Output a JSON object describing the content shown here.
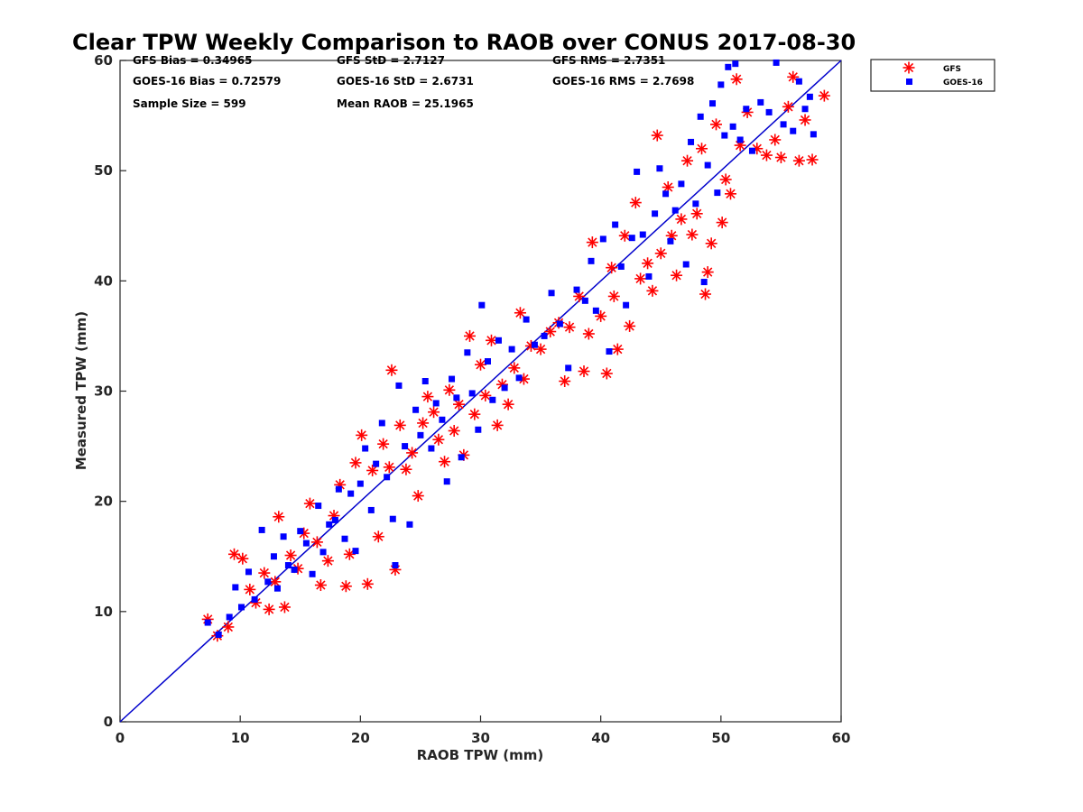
{
  "chart_data": {
    "type": "scatter",
    "title": "Clear TPW Weekly Comparison to RAOB over CONUS 2017-08-30",
    "xlabel": "RAOB TPW (mm)",
    "ylabel": "Measured TPW (mm)",
    "xlim": [
      0,
      60
    ],
    "ylim": [
      0,
      60
    ],
    "xticks": [
      "0",
      "10",
      "20",
      "30",
      "40",
      "50",
      "60"
    ],
    "yticks": [
      "0",
      "10",
      "20",
      "30",
      "40",
      "50",
      "60"
    ],
    "grid": false,
    "legend_position": "top-right outside plot",
    "stats": [
      "GFS Bias = 0.34965",
      "GFS StD = 2.7127",
      "GFS RMS = 2.7351",
      "GOES-16 Bias = 0.72579",
      "GOES-16 StD = 2.6731",
      "GOES-16 RMS = 2.7698",
      "Sample Size = 599",
      "Mean RAOB = 25.1965"
    ],
    "reference_line": {
      "slope": 1,
      "intercept": 0,
      "color": "#0000cc"
    },
    "series": [
      {
        "name": "GFS",
        "marker": "asterisk",
        "color": "#ff0000",
        "points": [
          [
            7.3,
            9.3
          ],
          [
            8.1,
            7.8
          ],
          [
            9.0,
            8.6
          ],
          [
            9.5,
            15.2
          ],
          [
            10.2,
            14.8
          ],
          [
            10.8,
            12.0
          ],
          [
            11.3,
            10.8
          ],
          [
            12.0,
            13.5
          ],
          [
            12.4,
            10.2
          ],
          [
            12.9,
            12.7
          ],
          [
            13.2,
            18.6
          ],
          [
            13.7,
            10.4
          ],
          [
            14.2,
            15.1
          ],
          [
            14.8,
            13.9
          ],
          [
            15.3,
            17.1
          ],
          [
            15.8,
            19.8
          ],
          [
            16.4,
            16.3
          ],
          [
            16.7,
            12.4
          ],
          [
            17.3,
            14.6
          ],
          [
            17.8,
            18.7
          ],
          [
            18.3,
            21.5
          ],
          [
            18.8,
            12.3
          ],
          [
            19.1,
            15.2
          ],
          [
            19.6,
            23.5
          ],
          [
            20.1,
            26.0
          ],
          [
            20.6,
            12.5
          ],
          [
            21.0,
            22.8
          ],
          [
            21.5,
            16.8
          ],
          [
            21.9,
            25.2
          ],
          [
            22.4,
            23.1
          ],
          [
            22.6,
            31.9
          ],
          [
            22.9,
            13.8
          ],
          [
            23.3,
            26.9
          ],
          [
            23.8,
            22.9
          ],
          [
            24.3,
            24.4
          ],
          [
            24.8,
            20.5
          ],
          [
            25.2,
            27.1
          ],
          [
            25.6,
            29.5
          ],
          [
            26.1,
            28.1
          ],
          [
            26.5,
            25.6
          ],
          [
            27.0,
            23.6
          ],
          [
            27.4,
            30.1
          ],
          [
            27.8,
            26.4
          ],
          [
            28.2,
            28.8
          ],
          [
            28.6,
            24.2
          ],
          [
            29.1,
            35.0
          ],
          [
            29.5,
            27.9
          ],
          [
            30.0,
            32.4
          ],
          [
            30.4,
            29.6
          ],
          [
            30.9,
            34.6
          ],
          [
            31.4,
            26.9
          ],
          [
            31.8,
            30.6
          ],
          [
            32.3,
            28.8
          ],
          [
            32.8,
            32.1
          ],
          [
            33.3,
            37.1
          ],
          [
            33.6,
            31.1
          ],
          [
            34.2,
            34.1
          ],
          [
            35.0,
            33.8
          ],
          [
            35.8,
            35.4
          ],
          [
            36.5,
            36.2
          ],
          [
            37.0,
            30.9
          ],
          [
            37.4,
            35.8
          ],
          [
            38.2,
            38.6
          ],
          [
            38.6,
            31.8
          ],
          [
            39.0,
            35.2
          ],
          [
            39.3,
            43.5
          ],
          [
            40.0,
            36.8
          ],
          [
            40.5,
            31.6
          ],
          [
            40.9,
            41.2
          ],
          [
            41.1,
            38.6
          ],
          [
            41.4,
            33.8
          ],
          [
            42.0,
            44.1
          ],
          [
            42.4,
            35.9
          ],
          [
            42.9,
            47.1
          ],
          [
            43.3,
            40.2
          ],
          [
            43.9,
            41.6
          ],
          [
            44.3,
            39.1
          ],
          [
            44.7,
            53.2
          ],
          [
            45.0,
            42.5
          ],
          [
            45.6,
            48.5
          ],
          [
            45.9,
            44.1
          ],
          [
            46.3,
            40.5
          ],
          [
            46.7,
            45.6
          ],
          [
            47.2,
            50.9
          ],
          [
            47.6,
            44.2
          ],
          [
            48.0,
            46.1
          ],
          [
            48.4,
            52.0
          ],
          [
            48.7,
            38.8
          ],
          [
            48.9,
            40.8
          ],
          [
            49.2,
            43.4
          ],
          [
            49.6,
            54.2
          ],
          [
            50.1,
            45.3
          ],
          [
            50.4,
            49.2
          ],
          [
            50.8,
            47.9
          ],
          [
            51.3,
            58.3
          ],
          [
            51.6,
            52.3
          ],
          [
            52.2,
            55.3
          ],
          [
            53.0,
            52.0
          ],
          [
            53.8,
            51.4
          ],
          [
            54.5,
            52.8
          ],
          [
            55.0,
            51.2
          ],
          [
            55.6,
            55.8
          ],
          [
            56.0,
            58.5
          ],
          [
            56.5,
            50.9
          ],
          [
            57.0,
            54.6
          ],
          [
            57.6,
            51.0
          ],
          [
            58.6,
            56.8
          ]
        ]
      },
      {
        "name": "GOES-16",
        "marker": "square",
        "color": "#0000ff",
        "points": [
          [
            7.3,
            9.0
          ],
          [
            8.2,
            7.9
          ],
          [
            9.1,
            9.5
          ],
          [
            9.6,
            12.2
          ],
          [
            10.1,
            10.4
          ],
          [
            10.7,
            13.6
          ],
          [
            11.2,
            11.1
          ],
          [
            11.8,
            17.4
          ],
          [
            12.3,
            12.7
          ],
          [
            12.8,
            15.0
          ],
          [
            13.1,
            12.1
          ],
          [
            13.6,
            16.8
          ],
          [
            14.0,
            14.2
          ],
          [
            14.5,
            13.8
          ],
          [
            15.0,
            17.3
          ],
          [
            15.5,
            16.2
          ],
          [
            16.0,
            13.4
          ],
          [
            16.5,
            19.6
          ],
          [
            16.9,
            15.4
          ],
          [
            17.4,
            17.9
          ],
          [
            17.9,
            18.3
          ],
          [
            18.2,
            21.1
          ],
          [
            18.7,
            16.6
          ],
          [
            19.2,
            20.7
          ],
          [
            19.6,
            15.5
          ],
          [
            20.0,
            21.6
          ],
          [
            20.4,
            24.8
          ],
          [
            20.9,
            19.2
          ],
          [
            21.3,
            23.4
          ],
          [
            21.8,
            27.1
          ],
          [
            22.2,
            22.2
          ],
          [
            22.7,
            18.4
          ],
          [
            22.9,
            14.2
          ],
          [
            23.2,
            30.5
          ],
          [
            23.7,
            25.0
          ],
          [
            24.1,
            17.9
          ],
          [
            24.6,
            28.3
          ],
          [
            25.0,
            26.0
          ],
          [
            25.4,
            30.9
          ],
          [
            25.9,
            24.8
          ],
          [
            26.3,
            28.9
          ],
          [
            26.8,
            27.4
          ],
          [
            27.2,
            21.8
          ],
          [
            27.6,
            31.1
          ],
          [
            28.0,
            29.4
          ],
          [
            28.4,
            24.0
          ],
          [
            28.9,
            33.5
          ],
          [
            29.3,
            29.8
          ],
          [
            29.8,
            26.5
          ],
          [
            30.1,
            37.8
          ],
          [
            30.6,
            32.7
          ],
          [
            31.0,
            29.2
          ],
          [
            31.5,
            34.6
          ],
          [
            32.0,
            30.3
          ],
          [
            32.6,
            33.8
          ],
          [
            33.2,
            31.2
          ],
          [
            33.8,
            36.5
          ],
          [
            34.5,
            34.2
          ],
          [
            35.3,
            35.0
          ],
          [
            35.9,
            38.9
          ],
          [
            36.6,
            36.1
          ],
          [
            37.3,
            32.1
          ],
          [
            38.0,
            39.2
          ],
          [
            38.7,
            38.2
          ],
          [
            39.2,
            41.8
          ],
          [
            39.6,
            37.3
          ],
          [
            40.2,
            43.8
          ],
          [
            40.7,
            33.6
          ],
          [
            41.2,
            45.1
          ],
          [
            41.7,
            41.3
          ],
          [
            42.1,
            37.8
          ],
          [
            42.6,
            43.9
          ],
          [
            43.0,
            49.9
          ],
          [
            43.5,
            44.2
          ],
          [
            44.0,
            40.4
          ],
          [
            44.5,
            46.1
          ],
          [
            44.9,
            50.2
          ],
          [
            45.4,
            47.9
          ],
          [
            45.8,
            43.6
          ],
          [
            46.2,
            46.4
          ],
          [
            46.7,
            48.8
          ],
          [
            47.1,
            41.5
          ],
          [
            47.5,
            52.6
          ],
          [
            47.9,
            47.0
          ],
          [
            48.3,
            54.9
          ],
          [
            48.6,
            39.9
          ],
          [
            48.9,
            50.5
          ],
          [
            49.3,
            56.1
          ],
          [
            49.7,
            48.0
          ],
          [
            50.0,
            57.8
          ],
          [
            50.3,
            53.2
          ],
          [
            50.6,
            59.4
          ],
          [
            51.0,
            54.0
          ],
          [
            51.2,
            59.7
          ],
          [
            51.6,
            52.8
          ],
          [
            52.1,
            55.6
          ],
          [
            52.6,
            51.8
          ],
          [
            53.3,
            56.2
          ],
          [
            54.0,
            55.3
          ],
          [
            54.6,
            59.8
          ],
          [
            55.2,
            54.2
          ],
          [
            56.0,
            53.6
          ],
          [
            56.5,
            58.1
          ],
          [
            57.0,
            55.6
          ],
          [
            57.4,
            56.7
          ],
          [
            57.7,
            53.3
          ]
        ]
      }
    ]
  }
}
